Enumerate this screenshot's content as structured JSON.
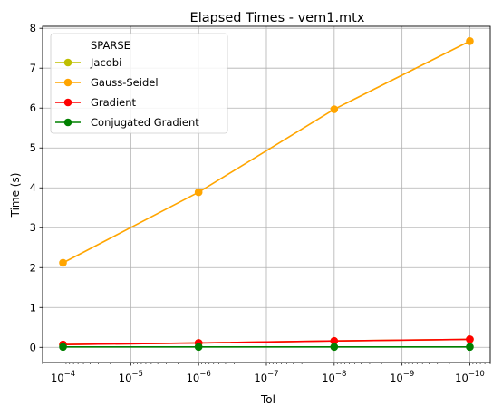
{
  "chart_data": {
    "type": "line",
    "title": "Elapsed Times - vem1.mtx",
    "xlabel": "Tol",
    "ylabel": "Time (s)",
    "x_scale": "log",
    "x_reversed": true,
    "x": [
      0.0001,
      1e-06,
      1e-08,
      1e-10
    ],
    "xlim": [
      0.0002,
      5e-11
    ],
    "ylim": [
      -0.38,
      8.05
    ],
    "x_ticks": [
      {
        "value": 0.0001,
        "base": "10",
        "exp": "−4"
      },
      {
        "value": 1e-05,
        "base": "10",
        "exp": "−5"
      },
      {
        "value": 1e-06,
        "base": "10",
        "exp": "−6"
      },
      {
        "value": 1e-07,
        "base": "10",
        "exp": "−7"
      },
      {
        "value": 1e-08,
        "base": "10",
        "exp": "−8"
      },
      {
        "value": 1e-09,
        "base": "10",
        "exp": "−9"
      },
      {
        "value": 1e-10,
        "base": "10",
        "exp": "−10"
      }
    ],
    "y_ticks": [
      0,
      1,
      2,
      3,
      4,
      5,
      6,
      7,
      8
    ],
    "grid": true,
    "legend": {
      "position": "top-left",
      "title": "SPARSE"
    },
    "series": [
      {
        "name": "Jacobi",
        "color": "#bfbf00",
        "values": [
          0.07,
          0.11,
          0.16,
          0.2
        ]
      },
      {
        "name": "Gauss-Seidel",
        "color": "#ffa500",
        "values": [
          2.12,
          3.89,
          5.97,
          7.68
        ]
      },
      {
        "name": "Gradient",
        "color": "#ff0000",
        "values": [
          0.07,
          0.11,
          0.16,
          0.2
        ]
      },
      {
        "name": "Conjugated Gradient",
        "color": "#008000",
        "values": [
          0.01,
          0.01,
          0.01,
          0.01
        ]
      }
    ]
  }
}
